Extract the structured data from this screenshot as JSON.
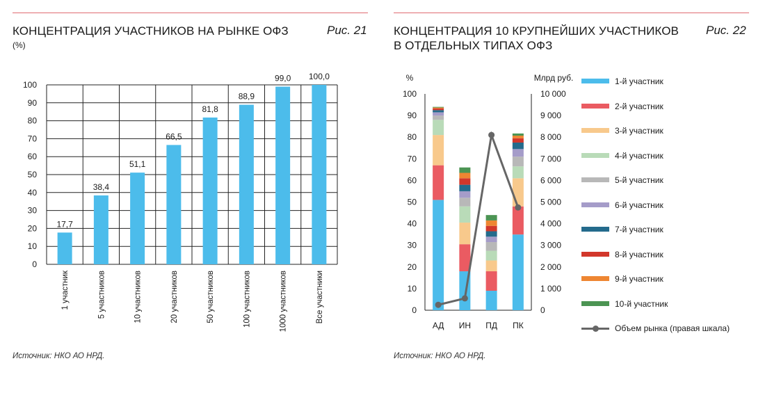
{
  "left": {
    "title": "КОНЦЕНТРАЦИЯ УЧАСТНИКОВ НА РЫНКЕ ОФЗ",
    "subtitle": "(%)",
    "fig_label": "Рис. 21",
    "source": "Источник: НКО АО НРД."
  },
  "right": {
    "title": "КОНЦЕНТРАЦИЯ 10 КРУПНЕЙШИХ УЧАСТНИКОВ\nВ ОТДЕЛЬНЫХ ТИПАХ ОФЗ",
    "fig_label": "Рис. 22",
    "source": "Источник: НКО АО НРД."
  },
  "chart_data": [
    {
      "type": "bar",
      "categories": [
        "1 участник",
        "5 участников",
        "10 участников",
        "20 участников",
        "50 участников",
        "100 участников",
        "1000 участников",
        "Все участники"
      ],
      "values": [
        17.7,
        38.4,
        51.1,
        66.5,
        81.8,
        88.9,
        99.0,
        100.0
      ],
      "value_labels": [
        "17,7",
        "38,4",
        "51,1",
        "66,5",
        "81,8",
        "88,9",
        "99,0",
        "100,0"
      ],
      "ylim": [
        0,
        100
      ],
      "yticks": [
        "0",
        "10",
        "20",
        "30",
        "40",
        "50",
        "60",
        "70",
        "80",
        "90",
        "100"
      ],
      "grid": true,
      "color": "#4cbceb"
    },
    {
      "type": "bar",
      "stacked": true,
      "categories": [
        "АД",
        "ИН",
        "ПД",
        "ПК"
      ],
      "ylabel_left": "%",
      "ylabel_right": "Млрд руб.",
      "ylim": [
        0,
        100
      ],
      "yticks_left": [
        "0",
        "10",
        "20",
        "30",
        "40",
        "50",
        "60",
        "70",
        "80",
        "90",
        "100"
      ],
      "y2lim": [
        0,
        10000
      ],
      "yticks_right": [
        "0",
        "1 000",
        "2 000",
        "3 000",
        "4 000",
        "5 000",
        "6 000",
        "7 000",
        "8 000",
        "9 000",
        "10 000"
      ],
      "series": [
        {
          "name": "1-й участник",
          "color": "#4cbceb",
          "values": [
            51,
            18,
            9,
            35
          ]
        },
        {
          "name": "2-й  участник",
          "color": "#ea5b62",
          "values": [
            16,
            12.5,
            9,
            13
          ]
        },
        {
          "name": "3-й участник",
          "color": "#f8c98c",
          "values": [
            14,
            10,
            5,
            13
          ]
        },
        {
          "name": "4-й участник",
          "color": "#b9dbb8",
          "values": [
            7,
            7.5,
            4.5,
            5.5
          ]
        },
        {
          "name": "5-й участник",
          "color": "#b8b8b8",
          "values": [
            2,
            4,
            4,
            4.5
          ]
        },
        {
          "name": "6-й участник",
          "color": "#a59cc9",
          "values": [
            1.5,
            3,
            2.5,
            3.5
          ]
        },
        {
          "name": "7-й участник",
          "color": "#246b8c",
          "values": [
            1,
            3,
            2.5,
            3
          ]
        },
        {
          "name": "8-й участник",
          "color": "#d2372b",
          "values": [
            0.8,
            3,
            2.5,
            2
          ]
        },
        {
          "name": "9-й участник",
          "color": "#ee8632",
          "values": [
            0.4,
            2.5,
            2.5,
            1.2
          ]
        },
        {
          "name": "10-й участник",
          "color": "#4c9453",
          "values": [
            0.3,
            2.5,
            2.5,
            1
          ]
        }
      ],
      "line_series": {
        "name": "Объем рынка (правая шкала)",
        "color": "#666666",
        "axis": "right",
        "values": [
          250,
          550,
          8100,
          4750
        ]
      },
      "grid": false,
      "legend_position": "right"
    }
  ]
}
